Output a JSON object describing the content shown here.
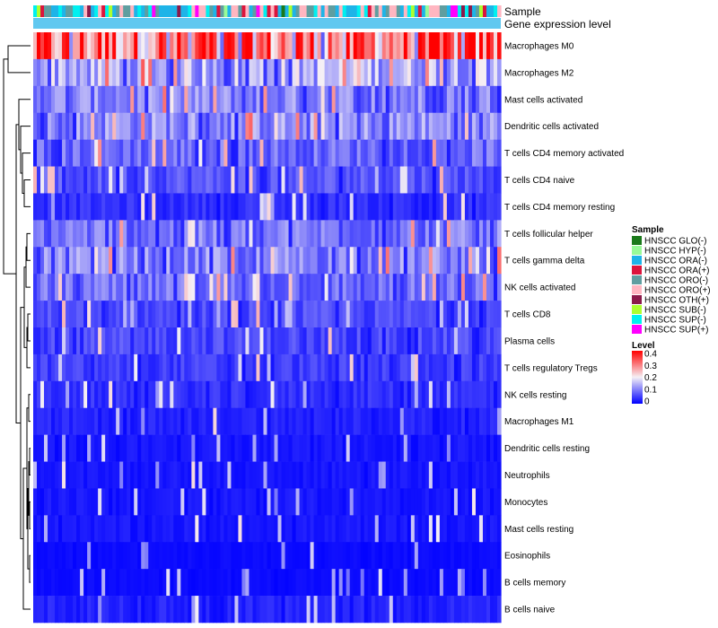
{
  "chart_data": {
    "type": "heatmap",
    "title": "",
    "annotation_labels": {
      "sample": "Sample",
      "expression": "Gene expression level"
    },
    "row_labels": [
      "Macrophages M0",
      "Macrophages M2",
      "Mast cells activated",
      "Dendritic cells activated",
      "T cells CD4 memory activated",
      "T cells CD4 naive",
      "T cells CD4 memory resting",
      "T cells follicular helper",
      "T cells gamma delta",
      "NK cells activated",
      "T cells CD8",
      "Plasma cells",
      "T cells regulatory  Tregs",
      "NK cells resting",
      "Macrophages M1",
      "Dendritic cells resting",
      "Neutrophils",
      "Monocytes",
      "Mast cells resting",
      "Eosinophils",
      "B cells memory",
      "B cells naive"
    ],
    "row_mean_levels": [
      0.3,
      0.15,
      0.11,
      0.12,
      0.09,
      0.07,
      0.04,
      0.1,
      0.11,
      0.09,
      0.06,
      0.06,
      0.05,
      0.04,
      0.03,
      0.02,
      0.02,
      0.02,
      0.02,
      0.01,
      0.01,
      0.03
    ],
    "n_samples": 130,
    "color_scale": {
      "title": "Level",
      "ticks": [
        "0.4",
        "0.3",
        "0.2",
        "0.1",
        "0"
      ],
      "min": 0,
      "max": 0.4,
      "low_color": "#0000ff",
      "mid_color": "#f5f0f5",
      "high_color": "#ff0000"
    },
    "sample_legend": {
      "title": "Sample",
      "entries": [
        {
          "label": "HNSCC GLO(-)",
          "color": "#1b7a1b"
        },
        {
          "label": "HNSCC HYP(-)",
          "color": "#98fb98"
        },
        {
          "label": "HNSCC ORA(-)",
          "color": "#1eb4e8"
        },
        {
          "label": "HNSCC ORA(+)",
          "color": "#dc143c"
        },
        {
          "label": "HNSCC ORO(-)",
          "color": "#5f9ea0"
        },
        {
          "label": "HNSCC ORO(+)",
          "color": "#ffb6c1"
        },
        {
          "label": "HNSCC OTH(+)",
          "color": "#8b1a4a"
        },
        {
          "label": "HNSCC SUB(-)",
          "color": "#adff2f"
        },
        {
          "label": "HNSCC SUP(-)",
          "color": "#00f0f0"
        },
        {
          "label": "HNSCC SUP(+)",
          "color": "#ff00ff"
        }
      ]
    },
    "expression_bar_color": "#60c8f0"
  }
}
